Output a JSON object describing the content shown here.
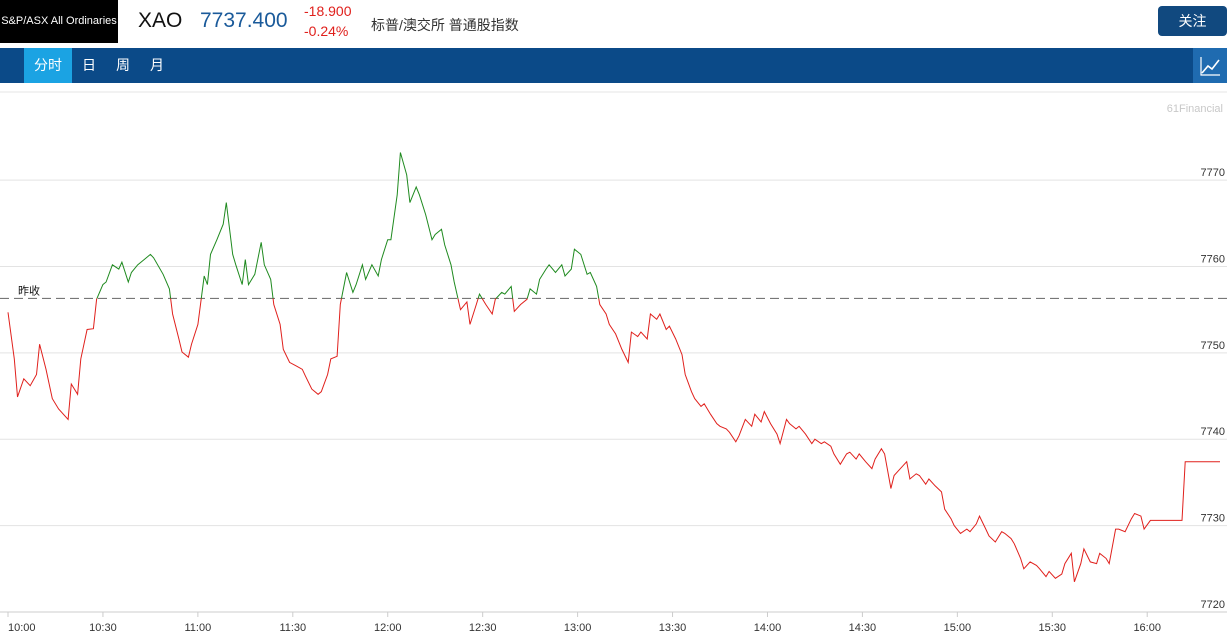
{
  "header": {
    "index_name": "S&P/ASX All Ordinaries",
    "symbol": "XAO",
    "price": "7737.400",
    "change": "-18.900",
    "change_pct": "-0.24%",
    "description": "标普/澳交所 普通股指数",
    "follow_button": "关注"
  },
  "tabs": [
    "分时",
    "日",
    "周",
    "月"
  ],
  "watermark": "61Financial",
  "chart_data": {
    "type": "line",
    "prev_close": 7756.3,
    "prev_close_label": "昨收",
    "colors": {
      "above": "#1f8a1f",
      "below": "#e0201c"
    },
    "xlim": [
      "10:00",
      "16:23"
    ],
    "xticks": [
      "10:00",
      "10:30",
      "11:00",
      "11:30",
      "12:00",
      "12:30",
      "13:00",
      "13:30",
      "14:00",
      "14:30",
      "15:00",
      "15:30",
      "16:00"
    ],
    "ylim": [
      7720,
      7780.2
    ],
    "yticks": [
      7720,
      7730,
      7740,
      7750,
      7760,
      7770
    ],
    "grid": true,
    "x": [
      "10:00",
      "10:02",
      "10:03",
      "10:05",
      "10:07",
      "10:09",
      "10:10",
      "10:12",
      "10:14",
      "10:16",
      "10:19",
      "10:20",
      "10:22",
      "10:23",
      "10:25",
      "10:27",
      "10:28",
      "10:30",
      "10:31",
      "10:33",
      "10:35",
      "10:36",
      "10:38",
      "10:39",
      "10:41",
      "10:43",
      "10:45",
      "10:46",
      "10:49",
      "10:51",
      "10:52",
      "10:54",
      "10:55",
      "10:57",
      "10:58",
      "11:00",
      "11:02",
      "11:03",
      "11:04",
      "11:06",
      "11:08",
      "11:09",
      "11:11",
      "11:12",
      "11:14",
      "11:15",
      "11:16",
      "11:18",
      "11:20",
      "11:21",
      "11:23",
      "11:24",
      "11:26",
      "11:27",
      "11:29",
      "11:31",
      "11:33",
      "11:34",
      "11:36",
      "11:38",
      "11:39",
      "11:41",
      "11:42",
      "11:44",
      "11:45",
      "11:47",
      "11:49",
      "11:50",
      "11:52",
      "11:53",
      "11:55",
      "11:57",
      "11:58",
      "12:00",
      "12:01",
      "12:03",
      "12:04",
      "12:06",
      "12:07",
      "12:09",
      "12:10",
      "12:12",
      "12:14",
      "12:15",
      "12:17",
      "12:18",
      "12:20",
      "12:21",
      "12:23",
      "12:25",
      "12:26",
      "12:28",
      "12:29",
      "12:31",
      "12:33",
      "12:34",
      "12:36",
      "12:37",
      "12:39",
      "12:40",
      "12:42",
      "12:44",
      "12:45",
      "12:47",
      "12:48",
      "12:50",
      "12:51",
      "12:53",
      "12:55",
      "12:56",
      "12:58",
      "12:59",
      "13:01",
      "13:03",
      "13:04",
      "13:06",
      "13:07",
      "13:09",
      "13:10",
      "13:12",
      "13:14",
      "13:16",
      "13:17",
      "13:19",
      "13:20",
      "13:22",
      "13:23",
      "13:25",
      "13:26",
      "13:28",
      "13:29",
      "13:31",
      "13:33",
      "13:34",
      "13:36",
      "13:37",
      "13:39",
      "13:40",
      "13:42",
      "13:44",
      "13:45",
      "13:47",
      "13:48",
      "13:50",
      "13:51",
      "13:53",
      "13:55",
      "13:56",
      "13:58",
      "13:59",
      "14:01",
      "14:03",
      "14:04",
      "14:06",
      "14:07",
      "14:09",
      "14:10",
      "14:12",
      "14:14",
      "14:15",
      "14:17",
      "14:18",
      "14:20",
      "14:21",
      "14:23",
      "14:25",
      "14:26",
      "14:28",
      "14:29",
      "14:31",
      "14:33",
      "14:34",
      "14:36",
      "14:37",
      "14:39",
      "14:40",
      "14:42",
      "14:44",
      "14:45",
      "14:47",
      "14:48",
      "14:50",
      "14:51",
      "14:53",
      "14:55",
      "14:56",
      "14:58",
      "14:59",
      "15:01",
      "15:03",
      "15:04",
      "15:06",
      "15:07",
      "15:09",
      "15:10",
      "15:12",
      "15:14",
      "15:15",
      "15:17",
      "15:18",
      "15:20",
      "15:21",
      "15:23",
      "15:25",
      "15:26",
      "15:28",
      "15:29",
      "15:31",
      "15:33",
      "15:34",
      "15:36",
      "15:37",
      "15:39",
      "15:40",
      "15:42",
      "15:44",
      "15:45",
      "15:47",
      "15:48",
      "15:50",
      "15:51",
      "15:53",
      "15:55",
      "15:56",
      "15:58",
      "15:59",
      "16:01",
      "16:11",
      "16:12",
      "16:23"
    ],
    "values": [
      7754.7,
      7749.3,
      7744.9,
      7747.0,
      7746.2,
      7747.5,
      7751.0,
      7748.1,
      7744.7,
      7743.5,
      7742.3,
      7746.4,
      7745.2,
      7749.3,
      7752.7,
      7752.8,
      7756.2,
      7757.9,
      7758.2,
      7760.2,
      7759.7,
      7760.5,
      7758.2,
      7759.3,
      7760.2,
      7760.8,
      7761.4,
      7761.0,
      7759.1,
      7757.4,
      7754.5,
      7751.6,
      7750.1,
      7749.5,
      7751.0,
      7753.3,
      7758.9,
      7757.9,
      7761.4,
      7763.1,
      7764.9,
      7767.4,
      7761.4,
      7760.2,
      7757.9,
      7760.8,
      7757.9,
      7759.1,
      7762.8,
      7760.2,
      7758.5,
      7755.6,
      7753.3,
      7750.4,
      7748.9,
      7748.5,
      7748.1,
      7747.3,
      7745.8,
      7745.2,
      7745.5,
      7747.5,
      7749.3,
      7749.6,
      7755.6,
      7759.3,
      7757.0,
      7757.9,
      7760.2,
      7758.5,
      7760.2,
      7758.9,
      7760.8,
      7763.1,
      7763.1,
      7768.3,
      7773.2,
      7770.6,
      7767.4,
      7769.2,
      7768.3,
      7766.0,
      7763.1,
      7763.7,
      7764.3,
      7762.5,
      7760.2,
      7758.2,
      7755.0,
      7755.9,
      7753.3,
      7755.6,
      7756.8,
      7755.6,
      7754.5,
      7756.2,
      7757.0,
      7756.8,
      7757.7,
      7754.8,
      7755.6,
      7756.2,
      7757.4,
      7756.8,
      7758.5,
      7759.7,
      7760.2,
      7759.3,
      7760.2,
      7758.9,
      7759.7,
      7762.0,
      7761.4,
      7759.1,
      7759.3,
      7757.7,
      7755.6,
      7754.5,
      7753.3,
      7752.2,
      7750.4,
      7748.9,
      7752.4,
      7751.9,
      7752.4,
      7751.6,
      7754.5,
      7753.9,
      7754.5,
      7752.7,
      7753.1,
      7751.6,
      7749.8,
      7747.5,
      7745.5,
      7744.7,
      7743.8,
      7744.1,
      7742.9,
      7741.8,
      7741.5,
      7741.2,
      7740.8,
      7739.7,
      7740.4,
      7742.3,
      7741.5,
      7742.9,
      7742.0,
      7743.2,
      7741.8,
      7740.6,
      7739.5,
      7742.3,
      7741.8,
      7741.2,
      7741.5,
      7740.6,
      7739.5,
      7740.0,
      7739.5,
      7739.7,
      7739.2,
      7738.3,
      7737.1,
      7738.3,
      7738.5,
      7737.7,
      7738.3,
      7737.4,
      7736.6,
      7737.7,
      7738.9,
      7738.3,
      7734.3,
      7735.8,
      7736.6,
      7737.4,
      7735.4,
      7736.0,
      7735.8,
      7734.8,
      7735.4,
      7734.6,
      7733.9,
      7731.9,
      7730.8,
      7730.0,
      7729.1,
      7729.6,
      7729.3,
      7730.2,
      7731.1,
      7729.6,
      7728.8,
      7728.1,
      7729.3,
      7729.1,
      7728.5,
      7727.9,
      7726.2,
      7725.0,
      7725.8,
      7725.4,
      7725.0,
      7724.1,
      7724.7,
      7723.9,
      7724.4,
      7725.6,
      7726.8,
      7723.5,
      7725.6,
      7727.3,
      7725.8,
      7725.6,
      7726.8,
      7726.2,
      7725.6,
      7729.6,
      7729.6,
      7729.3,
      7730.8,
      7731.4,
      7731.1,
      7729.6,
      7730.6,
      7730.6,
      7737.4,
      7737.4
    ]
  }
}
